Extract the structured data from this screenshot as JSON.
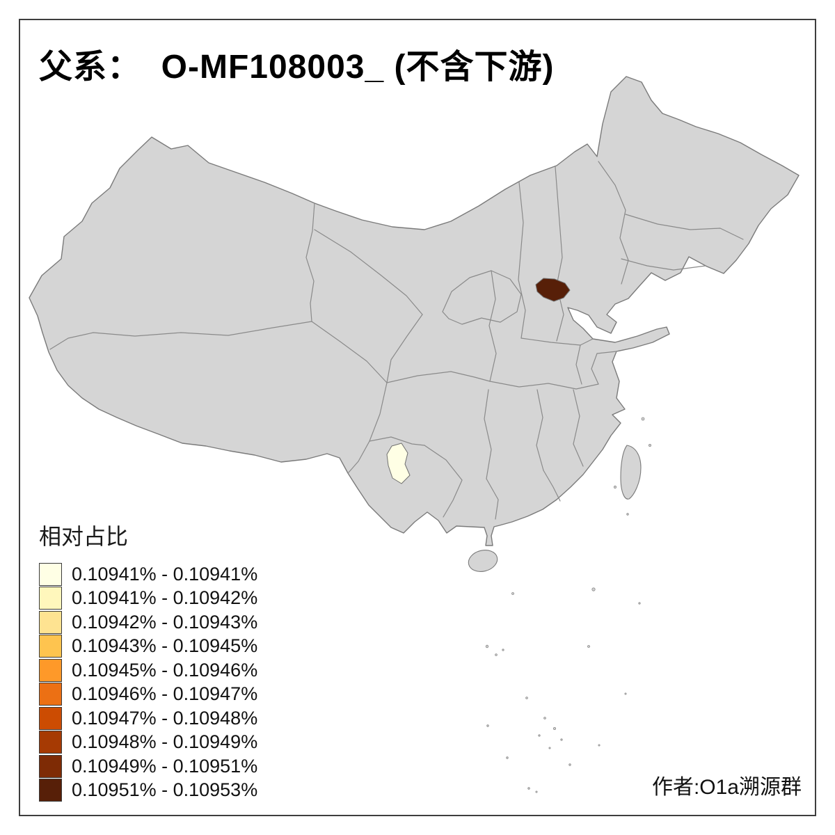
{
  "title": "父系：  O-MF108003_ (不含下游)",
  "attribution": "作者:O1a溯源群",
  "legend": {
    "title": "相对占比",
    "items": [
      {
        "label": "0.10941% - 0.10941%",
        "color": "#FFFFE5"
      },
      {
        "label": "0.10941% - 0.10942%",
        "color": "#FFF7BC"
      },
      {
        "label": "0.10942% - 0.10943%",
        "color": "#FEE391"
      },
      {
        "label": "0.10943% - 0.10945%",
        "color": "#FEC44F"
      },
      {
        "label": "0.10945% - 0.10946%",
        "color": "#FE9929"
      },
      {
        "label": "0.10946% - 0.10947%",
        "color": "#EC7014"
      },
      {
        "label": "0.10947% - 0.10948%",
        "color": "#CC4C02"
      },
      {
        "label": "0.10948% - 0.10949%",
        "color": "#A63A03"
      },
      {
        "label": "0.10949% - 0.10951%",
        "color": "#7E2B05"
      },
      {
        "label": "0.10951% - 0.10953%",
        "color": "#571F08"
      }
    ]
  },
  "map": {
    "base_fill": "#D5D5D5",
    "border_color": "#8A8A8A",
    "background": "#FFFFFF",
    "highlights": [
      {
        "name": "dark-region-north-china",
        "color": "#571F08",
        "legend_class": "0.10951% - 0.10953%"
      },
      {
        "name": "light-region-southwest",
        "color": "#FFFFE5",
        "legend_class": "0.10941% - 0.10941%"
      }
    ]
  },
  "chart_data": {
    "type": "heatmap",
    "subtype": "choropleth-map-of-china",
    "title": "父系：  O-MF108003_ (不含下游)",
    "legend_title": "相对占比",
    "legend_position": "bottom-left",
    "classes": [
      "0.10941% - 0.10941%",
      "0.10941% - 0.10942%",
      "0.10942% - 0.10943%",
      "0.10943% - 0.10945%",
      "0.10945% - 0.10946%",
      "0.10946% - 0.10947%",
      "0.10947% - 0.10948%",
      "0.10948% - 0.10949%",
      "0.10949% - 0.10951%",
      "0.10951% - 0.10953%"
    ],
    "colors": [
      "#FFFFE5",
      "#FFF7BC",
      "#FEE391",
      "#FEC44F",
      "#FE9929",
      "#EC7014",
      "#CC4C02",
      "#A63A03",
      "#7E2B05",
      "#571F08"
    ],
    "shaded_regions": [
      {
        "approx_location": "north China, near Beijing",
        "value_class": "0.10951% - 0.10953%",
        "color": "#571F08"
      },
      {
        "approx_location": "southwest China, central Yunnan",
        "value_class": "0.10941% - 0.10941%",
        "color": "#FFFFE5"
      }
    ],
    "unshaded_fill": "#D5D5D5"
  }
}
